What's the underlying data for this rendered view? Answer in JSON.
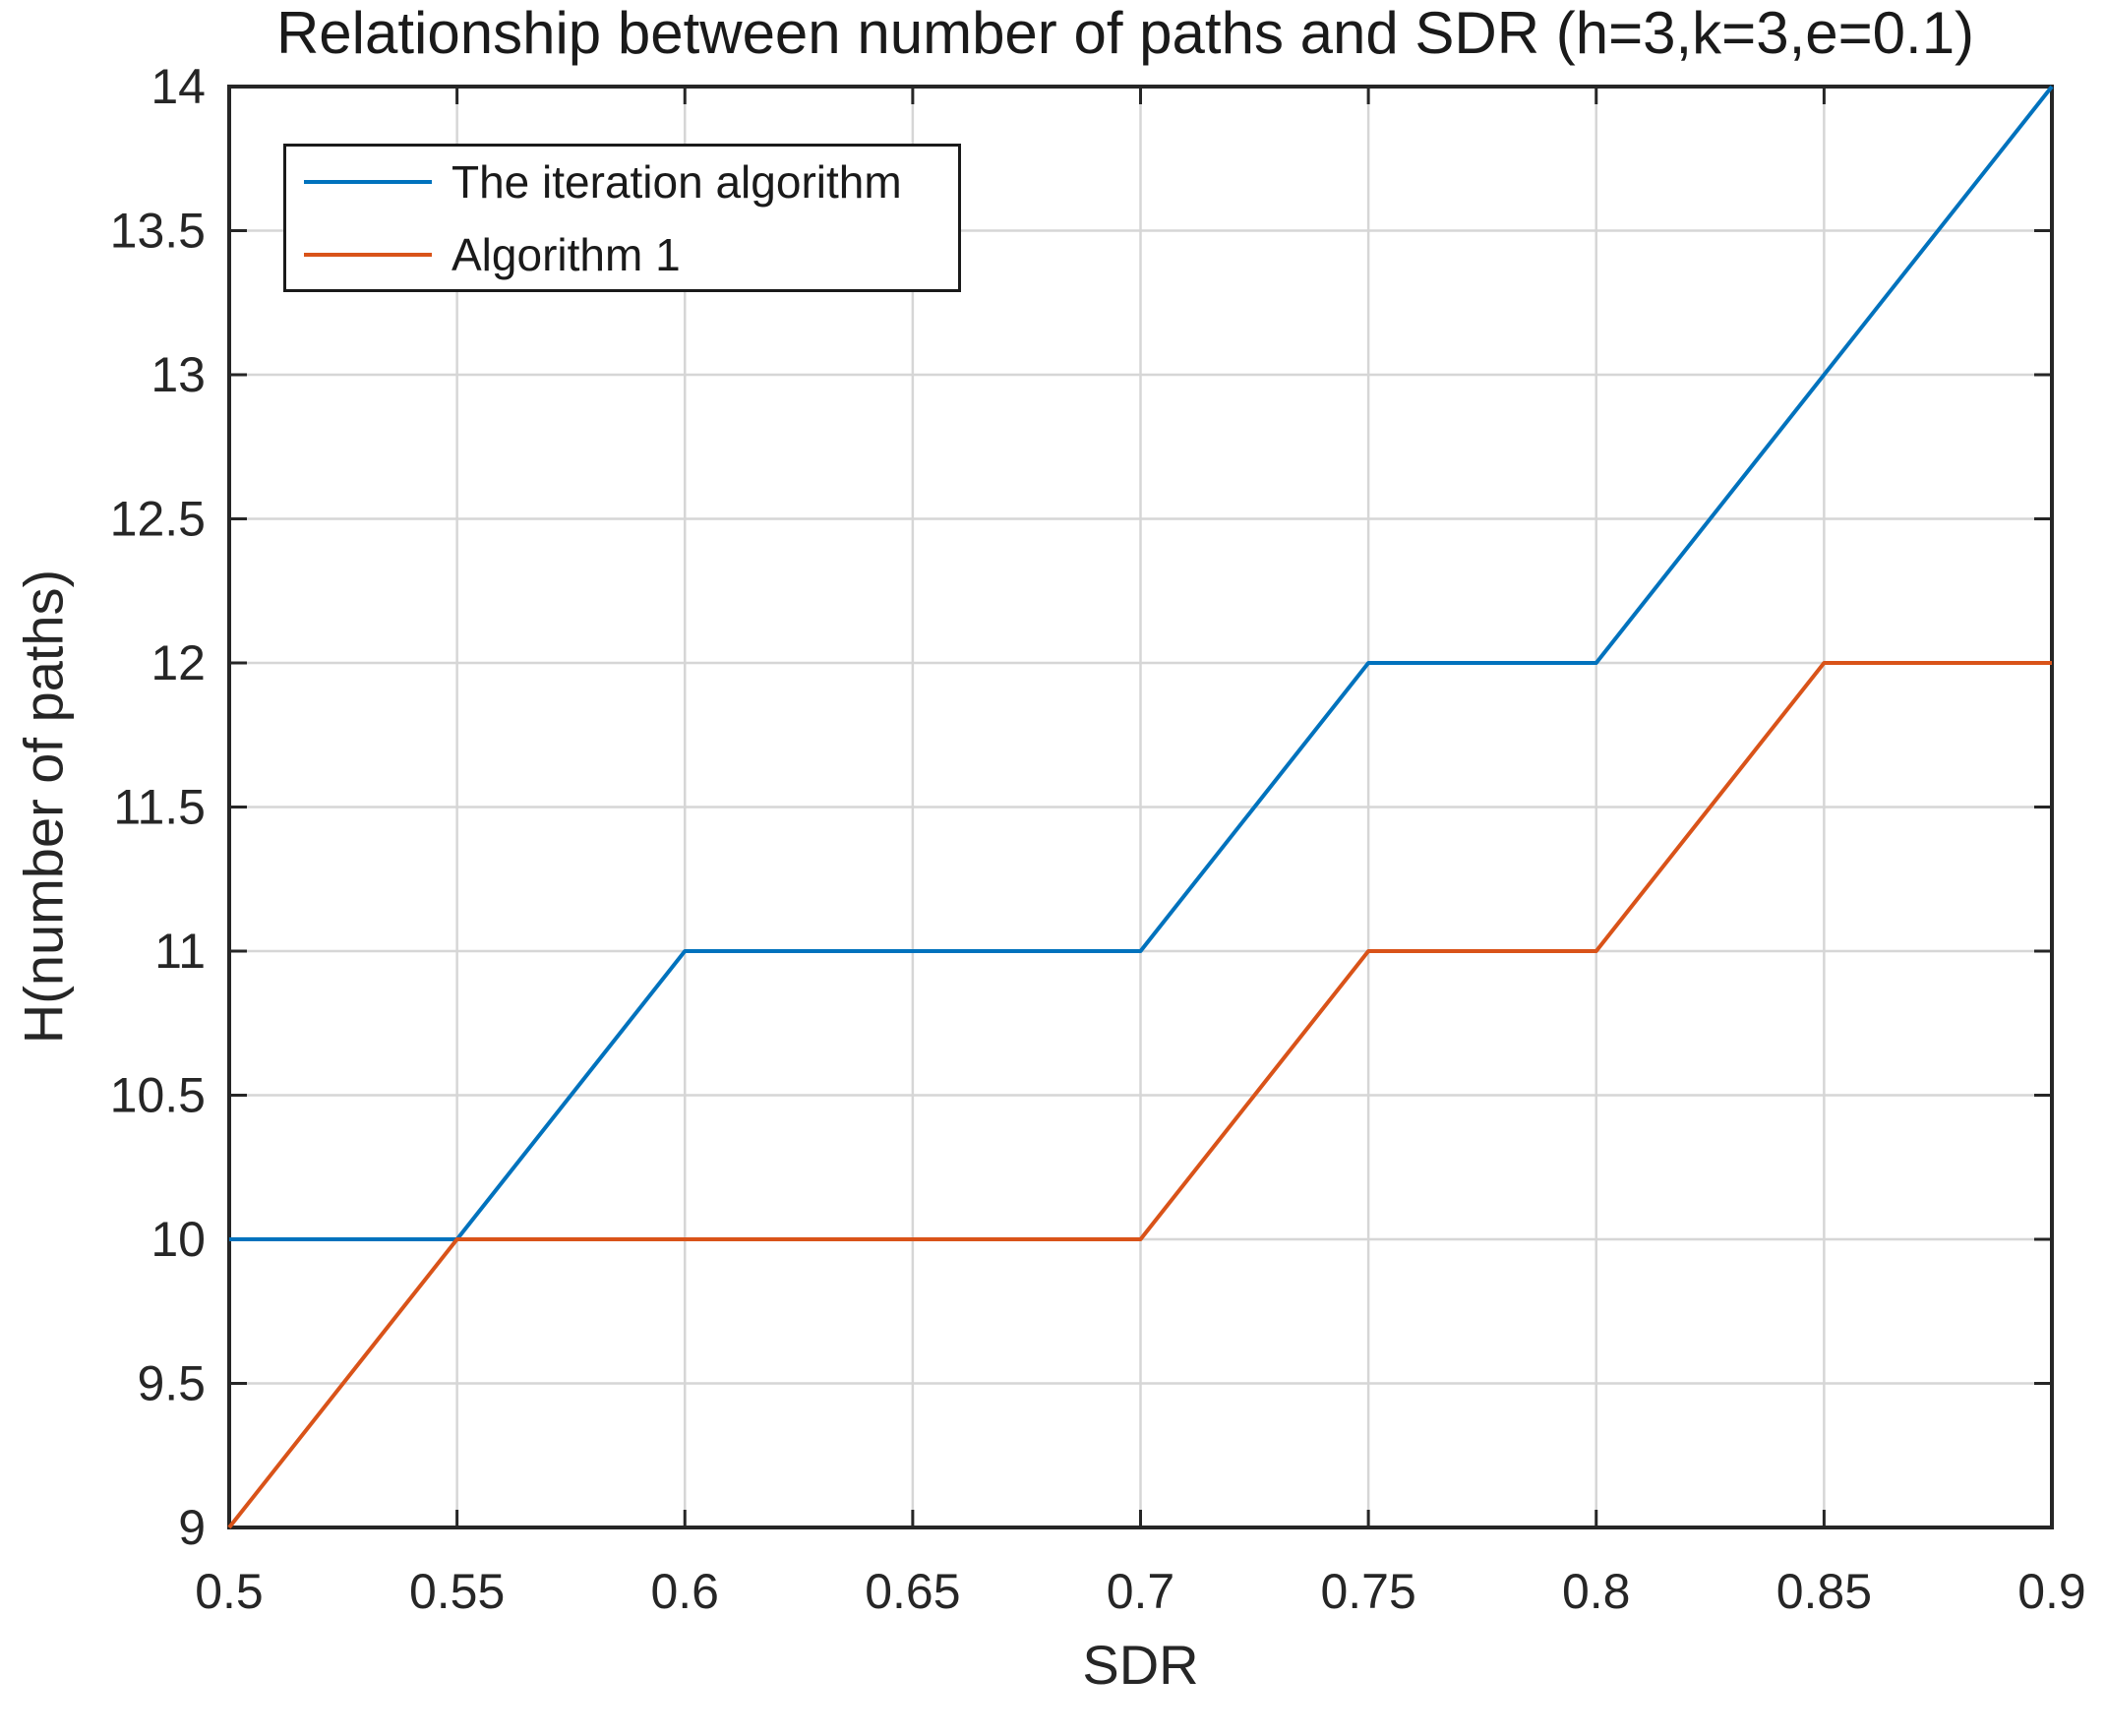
{
  "chart_data": {
    "type": "line",
    "title": "Relationship between number of paths and SDR（h=3,k=3,e=0.1）",
    "xlabel": "SDR",
    "ylabel": "H(number of paths)",
    "x": [
      0.5,
      0.55,
      0.6,
      0.65,
      0.7,
      0.75,
      0.8,
      0.85,
      0.9
    ],
    "xlim": [
      0.5,
      0.9
    ],
    "ylim": [
      9,
      14
    ],
    "xtick_labels": [
      "0.5",
      "0.55",
      "0.6",
      "0.65",
      "0.7",
      "0.75",
      "0.8",
      "0.85",
      "0.9"
    ],
    "ytick_labels": [
      "9",
      "9.5",
      "10",
      "10.5",
      "11",
      "11.5",
      "12",
      "12.5",
      "13",
      "13.5",
      "14"
    ],
    "grid": true,
    "legend": {
      "position": "top-left",
      "entries": [
        "The iteration algorithm",
        "Algorithm 1"
      ]
    },
    "series": [
      {
        "name": "The iteration algorithm",
        "color": "#0072BD",
        "values": [
          10,
          10,
          11,
          11,
          11,
          12,
          12,
          13,
          14
        ]
      },
      {
        "name": "Algorithm 1",
        "color": "#D95319",
        "values": [
          9,
          10,
          10,
          10,
          10,
          11,
          11,
          12,
          12
        ]
      }
    ],
    "axis_color": "#262626",
    "grid_color": "#d6d6d6",
    "background_color": "#ffffff"
  }
}
